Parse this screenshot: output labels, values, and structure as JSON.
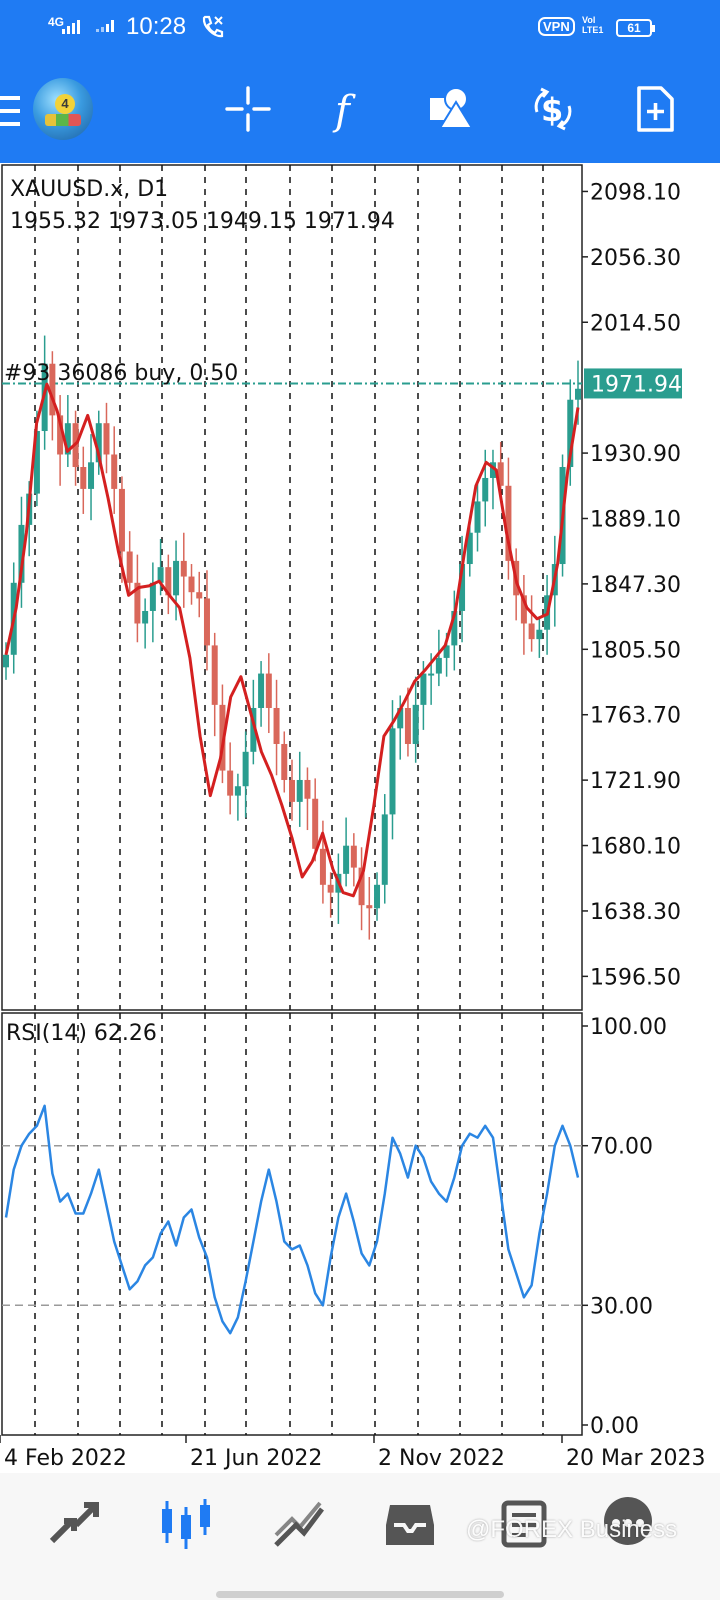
{
  "status_bar": {
    "network": "4G",
    "time": "10:28",
    "vpn": "VPN",
    "volte": "Vol",
    "lte": "LTE1",
    "battery": "61"
  },
  "toolbar": {
    "icons": [
      "menu-icon",
      "metatrader-4-logo",
      "crosshair-icon",
      "function-icon",
      "objects-icon",
      "currency-exchange-icon",
      "new-document-icon"
    ]
  },
  "main_chart": {
    "symbol": "XAUUSD.x, D1",
    "ohlc": "1955.32 1973.05 1949.15 1971.94",
    "order_label": "#93 36086 buy, 0.50",
    "current_price": "1971.94",
    "price_ticks": [
      "2098.10",
      "2056.30",
      "2014.50",
      "1930.90",
      "1889.10",
      "1847.30",
      "1805.50",
      "1763.70",
      "1721.90",
      "1680.10",
      "1638.30",
      "1596.50"
    ]
  },
  "rsi_panel": {
    "label": "RSI(14) 62.26",
    "ticks": [
      "100.00",
      "70.00",
      "30.00",
      "0.00"
    ]
  },
  "time_axis": {
    "labels": [
      "4 Feb 2022",
      "21 Jun 2022",
      "2 Nov 2022",
      "20 Mar 2023"
    ]
  },
  "bottom_nav": {
    "items": [
      "quotes-icon",
      "chart-icon",
      "trade-icon",
      "history-icon",
      "news-icon",
      "chat-icon"
    ],
    "watermark": "@FOREX Business"
  },
  "chart_data": [
    {
      "type": "candlestick",
      "title": "XAUUSD.x, D1",
      "colors": {
        "bull": "#2a9d8f",
        "bear": "#d9675a",
        "ma": "#d42020",
        "grid": "#111111"
      },
      "x_labels": [
        "4 Feb 2022",
        "21 Jun 2022",
        "2 Nov 2022",
        "20 Mar 2023"
      ],
      "ylim": [
        1575,
        2115
      ],
      "order_line": 1975.4,
      "last_price": 1971.94,
      "series": [
        {
          "name": "close",
          "values": [
            1802,
            1848,
            1885,
            1905,
            1945,
            1988,
            1955,
            1930,
            1950,
            1922,
            1908,
            1925,
            1950,
            1930,
            1908,
            1868,
            1848,
            1822,
            1830,
            1848,
            1858,
            1840,
            1862,
            1852,
            1842,
            1838,
            1808,
            1770,
            1728,
            1712,
            1718,
            1740,
            1768,
            1790,
            1768,
            1745,
            1722,
            1708,
            1722,
            1710,
            1678,
            1655,
            1650,
            1662,
            1680,
            1666,
            1642,
            1640,
            1655,
            1700,
            1755,
            1768,
            1745,
            1770,
            1790,
            1790,
            1800,
            1808,
            1830,
            1860,
            1880,
            1900,
            1915,
            1925,
            1910,
            1862,
            1840,
            1822,
            1812,
            1818,
            1840,
            1860,
            1922,
            1965,
            1972
          ]
        },
        {
          "name": "MA",
          "values": [
            1802,
            1832,
            1880,
            1950,
            1975,
            1958,
            1932,
            1938,
            1955,
            1932,
            1902,
            1868,
            1840,
            1845,
            1846,
            1849,
            1840,
            1832,
            1800,
            1750,
            1712,
            1736,
            1775,
            1788,
            1764,
            1740,
            1725,
            1706,
            1685,
            1660,
            1670,
            1688,
            1665,
            1650,
            1648,
            1664,
            1705,
            1750,
            1760,
            1772,
            1785,
            1792,
            1800,
            1808,
            1830,
            1872,
            1910,
            1925,
            1920,
            1880,
            1848,
            1832,
            1825,
            1828,
            1860,
            1920,
            1960
          ]
        }
      ]
    },
    {
      "type": "line",
      "title": "RSI(14) 62.26",
      "ylim": [
        0,
        100
      ],
      "levels": [
        70,
        30
      ],
      "series": [
        {
          "name": "RSI(14)",
          "values": [
            52,
            64,
            70,
            73,
            75,
            80,
            63,
            56,
            58,
            53,
            53,
            58,
            64,
            55,
            46,
            40,
            34,
            36,
            40,
            42,
            48,
            51,
            45,
            52,
            54,
            47,
            42,
            32,
            26,
            23,
            27,
            36,
            46,
            56,
            64,
            56,
            46,
            44,
            45,
            40,
            33,
            30,
            42,
            52,
            58,
            51,
            43,
            40,
            46,
            58,
            72,
            68,
            62,
            70,
            67,
            61,
            58,
            56,
            62,
            70,
            73,
            72,
            75,
            72,
            58,
            44,
            38,
            32,
            35,
            48,
            58,
            70,
            75,
            70,
            62
          ]
        }
      ]
    }
  ]
}
